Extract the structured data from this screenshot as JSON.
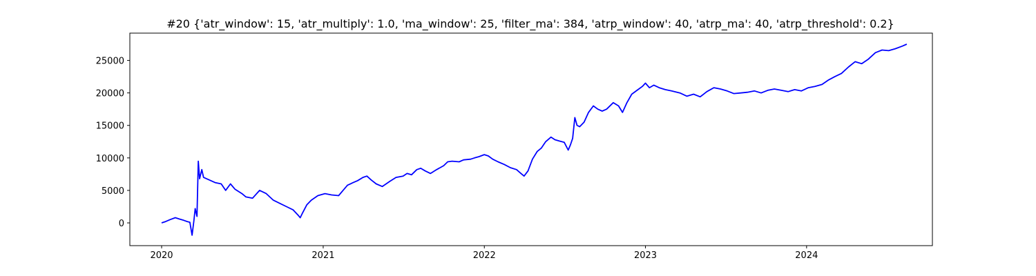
{
  "chart_data": {
    "type": "line",
    "title": "#20 {'atr_window': 15, 'atr_multiply': 1.0, 'ma_window': 25, 'filter_ma': 384, 'atrp_window': 40, 'atrp_ma': 40, 'atrp_threshold': 0.2}",
    "xlabel": "",
    "ylabel": "",
    "x_axis_type": "date",
    "xlim": [
      "2019-10-21",
      "2024-10-12"
    ],
    "ylim": [
      -3500,
      29200
    ],
    "x_ticks": [
      "2020-01-01",
      "2021-01-01",
      "2022-01-01",
      "2023-01-01",
      "2024-01-01"
    ],
    "x_tick_labels": [
      "2020",
      "2021",
      "2022",
      "2023",
      "2024"
    ],
    "y_ticks": [
      0,
      5000,
      10000,
      15000,
      20000,
      25000
    ],
    "y_tick_labels": [
      "0",
      "5000",
      "10000",
      "15000",
      "20000",
      "25000"
    ],
    "grid": false,
    "legend": "none",
    "series": [
      {
        "color": "#0000ff",
        "points": [
          [
            "2020-01-01",
            0
          ],
          [
            "2020-01-10",
            200
          ],
          [
            "2020-01-20",
            500
          ],
          [
            "2020-02-01",
            800
          ],
          [
            "2020-02-10",
            600
          ],
          [
            "2020-02-20",
            400
          ],
          [
            "2020-02-28",
            200
          ],
          [
            "2020-03-05",
            100
          ],
          [
            "2020-03-10",
            -1900
          ],
          [
            "2020-03-14",
            300
          ],
          [
            "2020-03-17",
            2200
          ],
          [
            "2020-03-21",
            1000
          ],
          [
            "2020-03-24",
            9500
          ],
          [
            "2020-03-27",
            6800
          ],
          [
            "2020-04-01",
            8200
          ],
          [
            "2020-04-05",
            7000
          ],
          [
            "2020-04-15",
            6700
          ],
          [
            "2020-05-01",
            6200
          ],
          [
            "2020-05-15",
            6000
          ],
          [
            "2020-05-25",
            5000
          ],
          [
            "2020-06-05",
            6000
          ],
          [
            "2020-06-15",
            5200
          ],
          [
            "2020-07-01",
            4500
          ],
          [
            "2020-07-10",
            4000
          ],
          [
            "2020-07-25",
            3800
          ],
          [
            "2020-08-10",
            5000
          ],
          [
            "2020-08-25",
            4500
          ],
          [
            "2020-09-10",
            3500
          ],
          [
            "2020-09-25",
            3000
          ],
          [
            "2020-10-10",
            2500
          ],
          [
            "2020-10-25",
            2000
          ],
          [
            "2020-11-05",
            1200
          ],
          [
            "2020-11-10",
            800
          ],
          [
            "2020-11-15",
            1500
          ],
          [
            "2020-11-25",
            2800
          ],
          [
            "2020-12-05",
            3500
          ],
          [
            "2020-12-20",
            4200
          ],
          [
            "2021-01-05",
            4500
          ],
          [
            "2021-01-20",
            4300
          ],
          [
            "2021-02-05",
            4200
          ],
          [
            "2021-02-15",
            5000
          ],
          [
            "2021-02-25",
            5800
          ],
          [
            "2021-03-10",
            6200
          ],
          [
            "2021-03-20",
            6500
          ],
          [
            "2021-04-01",
            7000
          ],
          [
            "2021-04-10",
            7200
          ],
          [
            "2021-04-20",
            6600
          ],
          [
            "2021-05-01",
            6000
          ],
          [
            "2021-05-15",
            5600
          ],
          [
            "2021-06-01",
            6400
          ],
          [
            "2021-06-15",
            7000
          ],
          [
            "2021-07-01",
            7200
          ],
          [
            "2021-07-10",
            7600
          ],
          [
            "2021-07-20",
            7400
          ],
          [
            "2021-08-01",
            8200
          ],
          [
            "2021-08-10",
            8400
          ],
          [
            "2021-08-20",
            8000
          ],
          [
            "2021-09-01",
            7600
          ],
          [
            "2021-09-15",
            8200
          ],
          [
            "2021-10-01",
            8800
          ],
          [
            "2021-10-10",
            9400
          ],
          [
            "2021-10-20",
            9500
          ],
          [
            "2021-11-05",
            9400
          ],
          [
            "2021-11-15",
            9700
          ],
          [
            "2021-12-01",
            9800
          ],
          [
            "2021-12-10",
            10000
          ],
          [
            "2021-12-20",
            10200
          ],
          [
            "2022-01-01",
            10500
          ],
          [
            "2022-01-10",
            10300
          ],
          [
            "2022-01-20",
            9800
          ],
          [
            "2022-02-01",
            9400
          ],
          [
            "2022-02-15",
            9000
          ],
          [
            "2022-03-01",
            8500
          ],
          [
            "2022-03-15",
            8200
          ],
          [
            "2022-03-25",
            7600
          ],
          [
            "2022-04-01",
            7200
          ],
          [
            "2022-04-10",
            8000
          ],
          [
            "2022-04-20",
            9800
          ],
          [
            "2022-05-01",
            11000
          ],
          [
            "2022-05-10",
            11500
          ],
          [
            "2022-05-20",
            12500
          ],
          [
            "2022-06-01",
            13200
          ],
          [
            "2022-06-10",
            12800
          ],
          [
            "2022-06-20",
            12600
          ],
          [
            "2022-07-01",
            12400
          ],
          [
            "2022-07-10",
            11200
          ],
          [
            "2022-07-15",
            12000
          ],
          [
            "2022-07-20",
            13000
          ],
          [
            "2022-07-25",
            16200
          ],
          [
            "2022-07-30",
            15000
          ],
          [
            "2022-08-05",
            14800
          ],
          [
            "2022-08-15",
            15500
          ],
          [
            "2022-08-25",
            17000
          ],
          [
            "2022-09-05",
            18000
          ],
          [
            "2022-09-15",
            17500
          ],
          [
            "2022-09-25",
            17200
          ],
          [
            "2022-10-05",
            17500
          ],
          [
            "2022-10-20",
            18500
          ],
          [
            "2022-11-01",
            18000
          ],
          [
            "2022-11-10",
            17000
          ],
          [
            "2022-11-20",
            18500
          ],
          [
            "2022-12-01",
            19800
          ],
          [
            "2022-12-15",
            20500
          ],
          [
            "2022-12-25",
            21000
          ],
          [
            "2023-01-01",
            21500
          ],
          [
            "2023-01-10",
            20800
          ],
          [
            "2023-01-20",
            21200
          ],
          [
            "2023-02-01",
            20800
          ],
          [
            "2023-02-15",
            20500
          ],
          [
            "2023-03-01",
            20300
          ],
          [
            "2023-03-20",
            20000
          ],
          [
            "2023-04-05",
            19500
          ],
          [
            "2023-04-20",
            19800
          ],
          [
            "2023-05-05",
            19400
          ],
          [
            "2023-05-20",
            20200
          ],
          [
            "2023-06-05",
            20800
          ],
          [
            "2023-06-20",
            20600
          ],
          [
            "2023-07-05",
            20300
          ],
          [
            "2023-07-20",
            19900
          ],
          [
            "2023-08-05",
            20000
          ],
          [
            "2023-08-20",
            20100
          ],
          [
            "2023-09-05",
            20300
          ],
          [
            "2023-09-20",
            20000
          ],
          [
            "2023-10-05",
            20400
          ],
          [
            "2023-10-20",
            20600
          ],
          [
            "2023-11-05",
            20400
          ],
          [
            "2023-11-20",
            20200
          ],
          [
            "2023-12-05",
            20500
          ],
          [
            "2023-12-20",
            20300
          ],
          [
            "2024-01-05",
            20800
          ],
          [
            "2024-01-20",
            21000
          ],
          [
            "2024-02-05",
            21300
          ],
          [
            "2024-02-20",
            22000
          ],
          [
            "2024-03-05",
            22500
          ],
          [
            "2024-03-20",
            23000
          ],
          [
            "2024-04-05",
            24000
          ],
          [
            "2024-04-20",
            24800
          ],
          [
            "2024-05-05",
            24500
          ],
          [
            "2024-05-20",
            25200
          ],
          [
            "2024-06-05",
            26200
          ],
          [
            "2024-06-20",
            26600
          ],
          [
            "2024-07-05",
            26500
          ],
          [
            "2024-07-20",
            26800
          ],
          [
            "2024-08-05",
            27200
          ],
          [
            "2024-08-15",
            27500
          ]
        ]
      }
    ]
  }
}
